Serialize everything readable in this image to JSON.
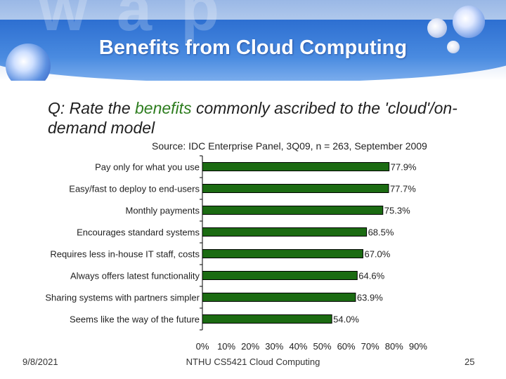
{
  "title": "Benefits from Cloud Computing",
  "question": {
    "part1": "Q: Rate the ",
    "highlight": "benefits",
    "part2": " commonly ascribed to the 'cloud'/on-demand model"
  },
  "source": "Source: IDC Enterprise Panel, 3Q09, n = 263, September 2009",
  "footer": {
    "date": "9/8/2021",
    "course": "NTHU CS5421 Cloud Computing",
    "page": "25"
  },
  "colors": {
    "bar_fill": "#1b6b12",
    "bar_stroke": "#000000",
    "header_band": "#3a7bd8"
  },
  "chart_data": {
    "type": "bar",
    "orientation": "horizontal",
    "categories": [
      "Pay only for what you use",
      "Easy/fast to deploy to end-users",
      "Monthly payments",
      "Encourages standard systems",
      "Requires less in-house IT staff, costs",
      "Always offers latest functionality",
      "Sharing systems with partners simpler",
      "Seems like the way of the future"
    ],
    "values": [
      77.9,
      77.7,
      75.3,
      68.5,
      67.0,
      64.6,
      63.9,
      54.0
    ],
    "value_labels": [
      "77.9%",
      "77.7%",
      "75.3%",
      "68.5%",
      "67.0%",
      "64.6%",
      "63.9%",
      "54.0%"
    ],
    "x_ticks": [
      "0%",
      "10%",
      "20%",
      "30%",
      "40%",
      "50%",
      "60%",
      "70%",
      "80%",
      "90%"
    ],
    "xlim": [
      0,
      90
    ],
    "grid": false,
    "legend": "none"
  }
}
